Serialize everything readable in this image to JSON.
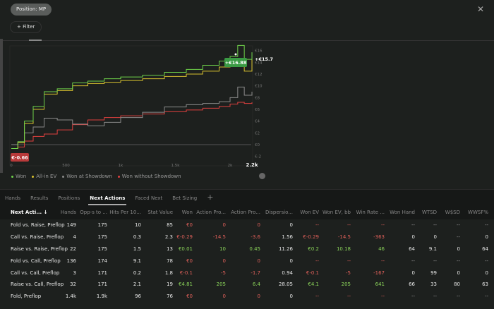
{
  "filters": {
    "position_pill": "Position: MP",
    "filter_button": "Filter",
    "filter_icon": "plus-icon"
  },
  "chart_data": {
    "type": "line",
    "x_ticks": [
      "0",
      "500",
      "1k",
      "1.5k",
      "2k",
      "2.2k"
    ],
    "x_tick_values": [
      0,
      500,
      1000,
      1500,
      2000,
      2200
    ],
    "y_ticks": [
      "€-2",
      "€0",
      "€2",
      "€4",
      "€6",
      "€8",
      "€10",
      "€12",
      "€14",
      "€16"
    ],
    "ylim": [
      -2,
      16
    ],
    "xlim": [
      0,
      2200
    ],
    "start_label": "€-0.66",
    "peak_label": "+€16.88",
    "end_label": "+€15.7",
    "series": [
      {
        "name": "Won",
        "color": "#6fd24a",
        "x": [
          0,
          60,
          120,
          200,
          300,
          420,
          560,
          700,
          850,
          1000,
          1200,
          1400,
          1600,
          1750,
          1900,
          2000,
          2070,
          2130,
          2200
        ],
        "y": [
          -0.66,
          0.5,
          4,
          6.5,
          9,
          9.5,
          10.5,
          10.8,
          11.2,
          11.5,
          11.8,
          12.3,
          12.8,
          13.5,
          14.2,
          15,
          16.88,
          14.5,
          15.7
        ]
      },
      {
        "name": "All-in EV",
        "color": "#d9c22e",
        "x": [
          0,
          60,
          120,
          200,
          300,
          420,
          560,
          700,
          850,
          1000,
          1200,
          1400,
          1600,
          1750,
          1900,
          2000,
          2070,
          2130,
          2200
        ],
        "y": [
          -0.66,
          0.3,
          3.6,
          6,
          8.6,
          9.2,
          10,
          10.4,
          10.6,
          10.9,
          11.2,
          11.6,
          12,
          12.5,
          13.2,
          13.8,
          14.5,
          12.5,
          14.8
        ]
      },
      {
        "name": "Won at Showdown",
        "color": "#8a8a8a",
        "x": [
          0,
          60,
          120,
          200,
          300,
          420,
          560,
          700,
          850,
          1000,
          1200,
          1400,
          1600,
          1750,
          1900,
          2000,
          2070,
          2130,
          2200
        ],
        "y": [
          0,
          0.5,
          2,
          3,
          4.5,
          4.2,
          3.5,
          3.2,
          3.8,
          4.6,
          5.5,
          6.4,
          6.8,
          7,
          7.3,
          8,
          9.8,
          8.4,
          9
        ]
      },
      {
        "name": "Won without Showdown",
        "color": "#e0403f",
        "x": [
          0,
          60,
          120,
          200,
          300,
          420,
          560,
          700,
          850,
          1000,
          1200,
          1400,
          1600,
          1750,
          1900,
          2000,
          2070,
          2130,
          2200
        ],
        "y": [
          -0.66,
          -0.4,
          0.6,
          1.4,
          1.8,
          2.5,
          3.4,
          4.2,
          4.6,
          4.9,
          5.2,
          5.6,
          5.9,
          6.2,
          6.5,
          6.9,
          7.2,
          7.0,
          7.2
        ]
      }
    ]
  },
  "settings_icon": "gear-icon",
  "tabs": [
    "Hands",
    "Results",
    "Positions",
    "Next Actions",
    "Faced Next",
    "Bet Sizing",
    "+"
  ],
  "active_tab": "Next Actions",
  "table": {
    "columns": [
      "Next Acti... ↓",
      "Hands",
      "Opp-s to ...",
      "Hits Per 10...",
      "Stat Value",
      "Won",
      "Action Pro...",
      "Action Pro...",
      "Dispersio...",
      "Won EV",
      "Won EV, bb",
      "Win Rate ...",
      "Won Hand",
      "WTSD",
      "W$SD",
      "WWSF%"
    ],
    "rows": [
      [
        "Fold vs. Raise, Preflop",
        "149",
        "175",
        "10",
        "85",
        "€0",
        "0",
        "0",
        "0",
        "--",
        "--",
        "--",
        "--",
        "--",
        "--",
        "--"
      ],
      [
        "Call vs. Raise, Preflop",
        "4",
        "175",
        "0.3",
        "2.3",
        "€-0.29",
        "-14.5",
        "-3.6",
        "1.56",
        "€-0.29",
        "-14.5",
        "-363",
        "0",
        "0",
        "--",
        "0"
      ],
      [
        "Raise vs. Raise, Preflop",
        "22",
        "175",
        "1.5",
        "13",
        "€0.01",
        "10",
        "0.45",
        "11.26",
        "€0.2",
        "10.18",
        "46",
        "64",
        "9.1",
        "0",
        "64"
      ],
      [
        "Fold vs. Call, Preflop",
        "136",
        "174",
        "9.1",
        "78",
        "€0",
        "0",
        "0",
        "0",
        "--",
        "--",
        "--",
        "--",
        "--",
        "--",
        "--"
      ],
      [
        "Call vs. Call, Preflop",
        "3",
        "171",
        "0.2",
        "1.8",
        "€-0.1",
        "-5",
        "-1.7",
        "0.94",
        "€-0.1",
        "-5",
        "-167",
        "0",
        "99",
        "0",
        "0"
      ],
      [
        "Raise vs. Call, Preflop",
        "32",
        "171",
        "2.1",
        "19",
        "€4.81",
        "205",
        "6.4",
        "28.05",
        "€4.1",
        "205",
        "641",
        "66",
        "33",
        "80",
        "63"
      ],
      [
        "Fold, Preflop",
        "1.4k",
        "1.9k",
        "96",
        "76",
        "€0",
        "0",
        "0",
        "0",
        "--",
        "--",
        "--",
        "--",
        "--",
        "--",
        "--"
      ]
    ]
  }
}
